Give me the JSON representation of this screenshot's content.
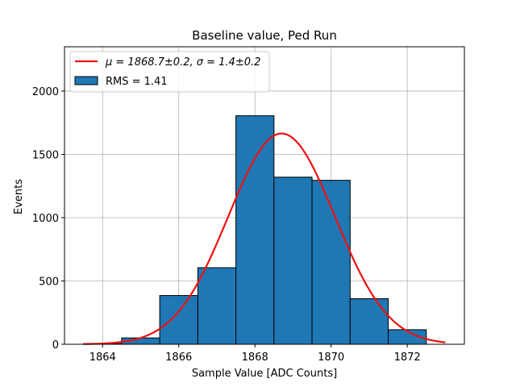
{
  "chart_data": {
    "type": "bar",
    "title": "Baseline value, Ped Run",
    "xlabel": "Sample Value [ADC Counts]",
    "ylabel": "Events",
    "xlim": [
      1863.0,
      1873.5
    ],
    "ylim": [
      0,
      2350
    ],
    "xticks": [
      1864,
      1866,
      1868,
      1870,
      1872
    ],
    "yticks": [
      0,
      500,
      1000,
      1500,
      2000
    ],
    "grid": true,
    "legend_position": "top-left",
    "histogram": {
      "name": "RMS = 1.41",
      "color": "#1f77b4",
      "bins": [
        {
          "lo": 1863.5,
          "hi": 1864.5,
          "count": 5
        },
        {
          "lo": 1864.5,
          "hi": 1865.5,
          "count": 50
        },
        {
          "lo": 1865.5,
          "hi": 1866.5,
          "count": 385
        },
        {
          "lo": 1866.5,
          "hi": 1867.5,
          "count": 605
        },
        {
          "lo": 1867.5,
          "hi": 1868.5,
          "count": 1805
        },
        {
          "lo": 1868.5,
          "hi": 1869.5,
          "count": 1320
        },
        {
          "lo": 1869.5,
          "hi": 1870.5,
          "count": 1295
        },
        {
          "lo": 1870.5,
          "hi": 1871.5,
          "count": 360
        },
        {
          "lo": 1871.5,
          "hi": 1872.5,
          "count": 115
        }
      ]
    },
    "fit": {
      "name_mu": "μ = 1868.7±0.2, ",
      "name_sigma": "σ = 1.4±0.2",
      "color": "#ee1111",
      "amplitude": 1665,
      "mean": 1868.7,
      "sigma": 1.4,
      "x_range": [
        1863.5,
        1873.0
      ]
    }
  }
}
